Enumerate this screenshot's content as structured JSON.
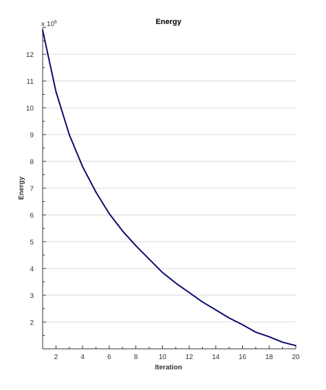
{
  "chart_data": {
    "type": "line",
    "title": "Energy",
    "xlabel": "Iteration",
    "ylabel": "Energy",
    "y_multiplier": "x 10",
    "y_multiplier_exponent": "6",
    "xlim": [
      1,
      20
    ],
    "ylim": [
      1,
      13
    ],
    "x_ticks": [
      2,
      4,
      6,
      8,
      10,
      12,
      14,
      16,
      18,
      20
    ],
    "y_ticks": [
      2,
      3,
      4,
      5,
      6,
      7,
      8,
      9,
      10,
      11,
      12
    ],
    "grid": "horizontal",
    "series": [
      {
        "color": "#0a0a6b",
        "x": [
          1,
          2,
          3,
          4,
          5,
          6,
          7,
          8,
          9,
          10,
          11,
          12,
          13,
          14,
          15,
          16,
          17,
          18,
          19,
          20
        ],
        "values": [
          12.9,
          10.6,
          9.0,
          7.8,
          6.85,
          6.05,
          5.4,
          4.85,
          4.35,
          3.85,
          3.45,
          3.1,
          2.75,
          2.45,
          2.15,
          1.9,
          1.62,
          1.45,
          1.25,
          1.12
        ]
      }
    ]
  }
}
